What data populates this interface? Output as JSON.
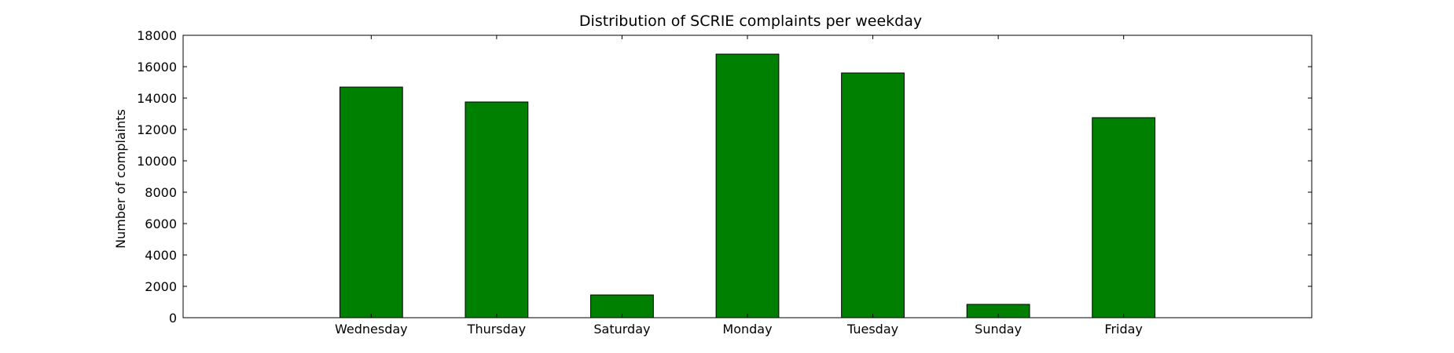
{
  "chart_data": {
    "type": "bar",
    "title": "Distribution of  SCRIE complaints per weekday",
    "xlabel": "",
    "ylabel": "Number of complaints",
    "categories": [
      "Wednesday",
      "Thursday",
      "Saturday",
      "Monday",
      "Tuesday",
      "Sunday",
      "Friday"
    ],
    "values": [
      14700,
      13750,
      1450,
      16800,
      15600,
      850,
      12750
    ],
    "ylim": [
      0,
      18000
    ],
    "yticks": [
      0,
      2000,
      4000,
      6000,
      8000,
      10000,
      12000,
      14000,
      16000,
      18000
    ],
    "grid": false,
    "legend": "none",
    "bar_color": "#008000",
    "edge_color": "#000000"
  }
}
